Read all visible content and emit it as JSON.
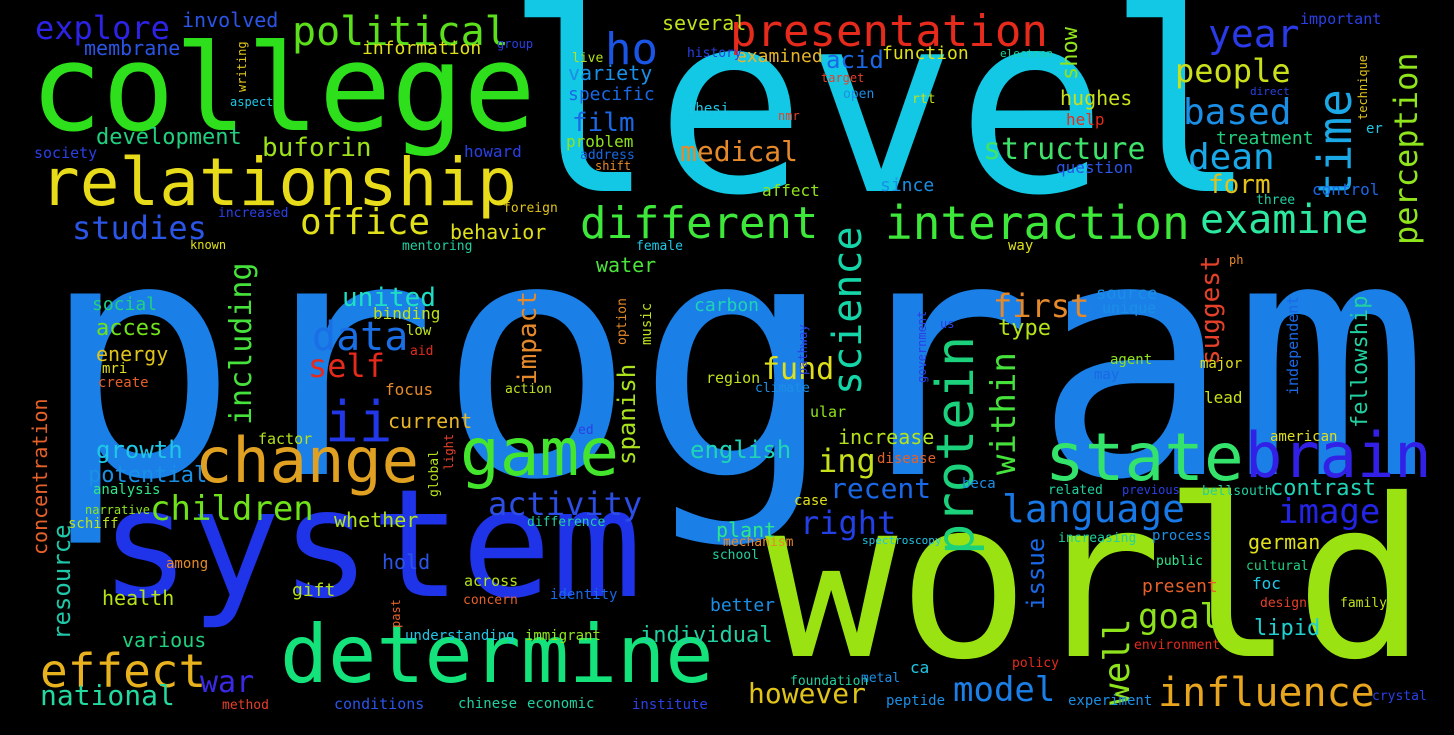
{
  "words": [
    {
      "text": "program",
      "color": "#1a7fe6"
    },
    {
      "text": "level",
      "color": "#12c8e4"
    },
    {
      "text": "world",
      "color": "#9ae211"
    },
    {
      "text": "system",
      "color": "#1f33e8"
    },
    {
      "text": "college",
      "color": "#2ee01b"
    },
    {
      "text": "determine",
      "color": "#14e27a"
    },
    {
      "text": "relationship",
      "color": "#e8dc1a"
    },
    {
      "text": "change",
      "color": "#e0a021"
    },
    {
      "text": "state",
      "color": "#33e36b"
    },
    {
      "text": "game",
      "color": "#43e62c"
    },
    {
      "text": "brain",
      "color": "#3220e6"
    },
    {
      "text": "presentation",
      "color": "#e62a1c"
    },
    {
      "text": "political",
      "color": "#5ce01c"
    },
    {
      "text": "protein",
      "color": "#1bd17c"
    },
    {
      "text": "interaction",
      "color": "#3ee83a"
    },
    {
      "text": "different",
      "color": "#3ee83a"
    },
    {
      "text": "examine",
      "color": "#2de9a0"
    },
    {
      "text": "time",
      "color": "#1aa9e6"
    },
    {
      "text": "science",
      "color": "#14d6a8"
    },
    {
      "text": "effect",
      "color": "#e8b21e"
    },
    {
      "text": "influence",
      "color": "#e8a51e"
    },
    {
      "text": "language",
      "color": "#1778e6"
    },
    {
      "text": "perception",
      "color": "#8fe41c"
    },
    {
      "text": "explore",
      "color": "#2d23e6"
    },
    {
      "text": "ho",
      "color": "#1b55e6"
    },
    {
      "text": "ii",
      "color": "#2137e8"
    },
    {
      "text": "office",
      "color": "#dfe01a"
    },
    {
      "text": "based",
      "color": "#1b8fe6"
    },
    {
      "text": "dean",
      "color": "#19a8e8"
    },
    {
      "text": "year",
      "color": "#2a3ae8"
    },
    {
      "text": "people",
      "color": "#c9e01a"
    },
    {
      "text": "children",
      "color": "#6fe21a"
    },
    {
      "text": "model",
      "color": "#1a7fe6"
    },
    {
      "text": "image",
      "color": "#2424e6"
    },
    {
      "text": "activity",
      "color": "#2d4ee6"
    },
    {
      "text": "within",
      "color": "#46e23c"
    },
    {
      "text": "including",
      "color": "#46e23c"
    },
    {
      "text": "structure",
      "color": "#3ee36b"
    },
    {
      "text": "data",
      "color": "#1b6fe6"
    },
    {
      "text": "goal",
      "color": "#8ee31c"
    },
    {
      "text": "studies",
      "color": "#2a55e6"
    },
    {
      "text": "well",
      "color": "#8ee31c"
    },
    {
      "text": "right",
      "color": "#2240e6"
    },
    {
      "text": "first",
      "color": "#e6892a"
    },
    {
      "text": "self",
      "color": "#e62a1c"
    },
    {
      "text": "united",
      "color": "#1fdfc3"
    },
    {
      "text": "war",
      "color": "#3a2ae6"
    },
    {
      "text": "national",
      "color": "#23d9a0"
    },
    {
      "text": "however",
      "color": "#e0c419"
    },
    {
      "text": "medical",
      "color": "#e6892a"
    },
    {
      "text": "buforin",
      "color": "#9de11a"
    },
    {
      "text": "ing",
      "color": "#c8e01a"
    },
    {
      "text": "fund",
      "color": "#dfe01a"
    },
    {
      "text": "recent",
      "color": "#1a68e6"
    },
    {
      "text": "form",
      "color": "#e2c11a"
    },
    {
      "text": "suggest",
      "color": "#e6402a"
    },
    {
      "text": "impact",
      "color": "#e6892a"
    },
    {
      "text": "show",
      "color": "#8fe41c"
    },
    {
      "text": "hughes",
      "color": "#c8e01a"
    },
    {
      "text": "film",
      "color": "#1a68e6"
    },
    {
      "text": "acid",
      "color": "#1a68e6"
    },
    {
      "text": "spanish",
      "color": "#a9e21c"
    },
    {
      "text": "english",
      "color": "#1fd4b6"
    },
    {
      "text": "increase",
      "color": "#b5e31a"
    },
    {
      "text": "growth",
      "color": "#1fc7e6"
    },
    {
      "text": "potential",
      "color": "#1a8fe6"
    },
    {
      "text": "contrast",
      "color": "#1fd4b6"
    },
    {
      "text": "fellowship",
      "color": "#21d0a0"
    },
    {
      "text": "lipid",
      "color": "#21d0d0"
    },
    {
      "text": "german",
      "color": "#dfe01a"
    },
    {
      "text": "issue",
      "color": "#1a68e6"
    },
    {
      "text": "whether",
      "color": "#b0e31a"
    },
    {
      "text": "plant",
      "color": "#2de88a"
    },
    {
      "text": "individual",
      "color": "#21d0a0"
    },
    {
      "text": "resource",
      "color": "#1fc7a8"
    },
    {
      "text": "concentration",
      "color": "#e6602a"
    },
    {
      "text": "development",
      "color": "#21d07f"
    },
    {
      "text": "membrane",
      "color": "#2a55e6"
    },
    {
      "text": "involved",
      "color": "#2a55e6"
    },
    {
      "text": "information",
      "color": "#dfe01a"
    },
    {
      "text": "several",
      "color": "#bee31c"
    },
    {
      "text": "variety",
      "color": "#1a8fe6"
    },
    {
      "text": "specific",
      "color": "#1a68e6"
    },
    {
      "text": "examined",
      "color": "#e6b52a"
    },
    {
      "text": "function",
      "color": "#dfe01a"
    },
    {
      "text": "behavior",
      "color": "#dfe01a"
    },
    {
      "text": "water",
      "color": "#4ce23c"
    },
    {
      "text": "acces",
      "color": "#6fe21a"
    },
    {
      "text": "energy",
      "color": "#e0c419"
    },
    {
      "text": "social",
      "color": "#21d07f"
    },
    {
      "text": "current",
      "color": "#e6b52a"
    },
    {
      "text": "carbon",
      "color": "#1fd4b6"
    },
    {
      "text": "type",
      "color": "#b5e31a"
    },
    {
      "text": "source",
      "color": "#1a8fe6"
    },
    {
      "text": "unique",
      "color": "#1a8fe6"
    },
    {
      "text": "treatment",
      "color": "#21d07f"
    },
    {
      "text": "control",
      "color": "#1a68e6"
    },
    {
      "text": "health",
      "color": "#b5e31a"
    },
    {
      "text": "various",
      "color": "#21d07f"
    },
    {
      "text": "hold",
      "color": "#2a55e6"
    },
    {
      "text": "gift",
      "color": "#b5e31a"
    },
    {
      "text": "better",
      "color": "#1a8fe6"
    },
    {
      "text": "present",
      "color": "#e6602a"
    },
    {
      "text": "binding",
      "color": "#bee31c"
    },
    {
      "text": "low",
      "color": "#bee31c"
    },
    {
      "text": "mri",
      "color": "#dfe01a"
    },
    {
      "text": "create",
      "color": "#e6602a"
    },
    {
      "text": "focus",
      "color": "#e6892a"
    },
    {
      "text": "lead",
      "color": "#c8e01a"
    },
    {
      "text": "american",
      "color": "#dfe01a"
    },
    {
      "text": "since",
      "color": "#1a8fe6"
    },
    {
      "text": "affect",
      "color": "#8fe41c"
    },
    {
      "text": "question",
      "color": "#2a55e6"
    },
    {
      "text": "help",
      "color": "#e62a1c"
    },
    {
      "text": "problem",
      "color": "#8fe41c"
    },
    {
      "text": "address",
      "color": "#1a68e6"
    },
    {
      "text": "howard",
      "color": "#2a40e6"
    },
    {
      "text": "society",
      "color": "#2a40e6"
    },
    {
      "text": "history",
      "color": "#2a40e6"
    },
    {
      "text": "important",
      "color": "#2a40e6"
    },
    {
      "text": "independent",
      "color": "#1a68e6"
    },
    {
      "text": "major",
      "color": "#dfe01a"
    },
    {
      "text": "agent",
      "color": "#8fe41c"
    },
    {
      "text": "may",
      "color": "#1a68e6"
    },
    {
      "text": "region",
      "color": "#bee31c"
    },
    {
      "text": "climate",
      "color": "#1a8fe6"
    },
    {
      "text": "ular",
      "color": "#8fe41c"
    },
    {
      "text": "factor",
      "color": "#b5e31a"
    },
    {
      "text": "disease",
      "color": "#e6602a"
    },
    {
      "text": "analysis",
      "color": "#2de88a"
    },
    {
      "text": "narrative",
      "color": "#8fe41c"
    },
    {
      "text": "schiff",
      "color": "#bee31c"
    },
    {
      "text": "among",
      "color": "#e6892a"
    },
    {
      "text": "across",
      "color": "#b5e31a"
    },
    {
      "text": "concern",
      "color": "#e6602a"
    },
    {
      "text": "identity",
      "color": "#1a68e6"
    },
    {
      "text": "understanding",
      "color": "#1fc7e6"
    },
    {
      "text": "immigrant",
      "color": "#8fe41c"
    },
    {
      "text": "conditions",
      "color": "#2a55e6"
    },
    {
      "text": "chinese",
      "color": "#21d0a0"
    },
    {
      "text": "economic",
      "color": "#21d0a0"
    },
    {
      "text": "institute",
      "color": "#2a40e6"
    },
    {
      "text": "foundation",
      "color": "#21d0a0"
    },
    {
      "text": "metal",
      "color": "#1a8fe6"
    },
    {
      "text": "peptide",
      "color": "#1a8fe6"
    },
    {
      "text": "experiment",
      "color": "#1a8fe6"
    },
    {
      "text": "crystal",
      "color": "#2a40e6"
    },
    {
      "text": "method",
      "color": "#e6402a"
    },
    {
      "text": "policy",
      "color": "#e62a1c"
    },
    {
      "text": "environment",
      "color": "#e62a1c"
    },
    {
      "text": "family",
      "color": "#bee31c"
    },
    {
      "text": "design",
      "color": "#e6402a"
    },
    {
      "text": "cultural",
      "color": "#21d07f"
    },
    {
      "text": "public",
      "color": "#2de88a"
    },
    {
      "text": "foc",
      "color": "#1fc7e6"
    },
    {
      "text": "bellsouth",
      "color": "#21d0a0"
    },
    {
      "text": "previous",
      "color": "#2a40e6"
    },
    {
      "text": "related",
      "color": "#21d0a0"
    },
    {
      "text": "increasing",
      "color": "#21d0a0"
    },
    {
      "text": "process",
      "color": "#1a8fe6"
    },
    {
      "text": "spectroscopy",
      "color": "#1fc7e6"
    },
    {
      "text": "school",
      "color": "#21d0a0"
    },
    {
      "text": "mechanism",
      "color": "#e6892a"
    },
    {
      "text": "case",
      "color": "#dfe01a"
    },
    {
      "text": "beca",
      "color": "#1a8fe6"
    },
    {
      "text": "ca",
      "color": "#1fc7e6"
    },
    {
      "text": "difference",
      "color": "#21d0a0"
    },
    {
      "text": "ed",
      "color": "#2a40e6"
    },
    {
      "text": "past",
      "color": "#e6602a"
    },
    {
      "text": "global",
      "color": "#b5e31a"
    },
    {
      "text": "light",
      "color": "#e6402a"
    },
    {
      "text": "action",
      "color": "#bee31c"
    },
    {
      "text": "music",
      "color": "#bee31c"
    },
    {
      "text": "option",
      "color": "#e6892a"
    },
    {
      "text": "aid",
      "color": "#e62a1c"
    },
    {
      "text": "mentoring",
      "color": "#21d0a0"
    },
    {
      "text": "known",
      "color": "#dfe01a"
    },
    {
      "text": "increased",
      "color": "#2a40e6"
    },
    {
      "text": "foreign",
      "color": "#e0c419"
    },
    {
      "text": "female",
      "color": "#1fc7e6"
    },
    {
      "text": "way",
      "color": "#dfe01a"
    },
    {
      "text": "three",
      "color": "#21d0a0"
    },
    {
      "text": "ph",
      "color": "#e6892a"
    },
    {
      "text": "us",
      "color": "#2a40e6"
    },
    {
      "text": "government",
      "color": "#2a40e6"
    },
    {
      "text": "pathway",
      "color": "#2a40e6"
    },
    {
      "text": "writing",
      "color": "#e0c419"
    },
    {
      "text": "aspect",
      "color": "#1fc7e6"
    },
    {
      "text": "live",
      "color": "#b5e31a"
    },
    {
      "text": "group",
      "color": "#2a40e6"
    },
    {
      "text": "thesi",
      "color": "#1fc7e6"
    },
    {
      "text": "nmr",
      "color": "#e6402a"
    },
    {
      "text": "open",
      "color": "#1a8fe6"
    },
    {
      "text": "target",
      "color": "#e6402a"
    },
    {
      "text": "rtt",
      "color": "#bee31c"
    },
    {
      "text": "electron",
      "color": "#21d0a0"
    },
    {
      "text": "direct",
      "color": "#2a40e6"
    },
    {
      "text": "technique",
      "color": "#e0c419"
    },
    {
      "text": "er",
      "color": "#1fc7e6"
    },
    {
      "text": "shift",
      "color": "#e6892a"
    }
  ]
}
